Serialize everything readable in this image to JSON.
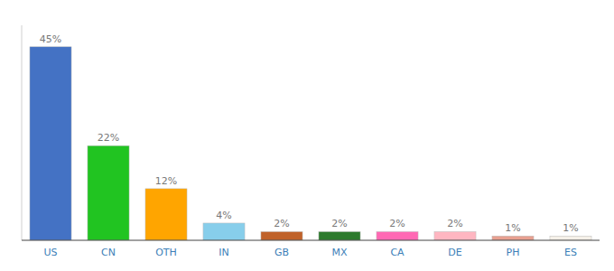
{
  "chart_data": {
    "type": "bar",
    "categories": [
      "US",
      "CN",
      "OTH",
      "IN",
      "GB",
      "MX",
      "CA",
      "DE",
      "PH",
      "ES"
    ],
    "values": [
      45,
      22,
      12,
      4,
      2,
      2,
      2,
      2,
      1,
      1
    ],
    "value_labels": [
      "45%",
      "22%",
      "12%",
      "4%",
      "2%",
      "2%",
      "2%",
      "2%",
      "1%",
      "1%"
    ],
    "colors": [
      "#4472c4",
      "#21c421",
      "#ffa500",
      "#87ceeb",
      "#c0622a",
      "#2d7a2d",
      "#ff69b4",
      "#ffb6c1",
      "#e8a090",
      "#f5f0e8"
    ],
    "ylim": [
      0,
      50
    ],
    "grid": false,
    "data_labels": true,
    "tick_labels": "x"
  }
}
